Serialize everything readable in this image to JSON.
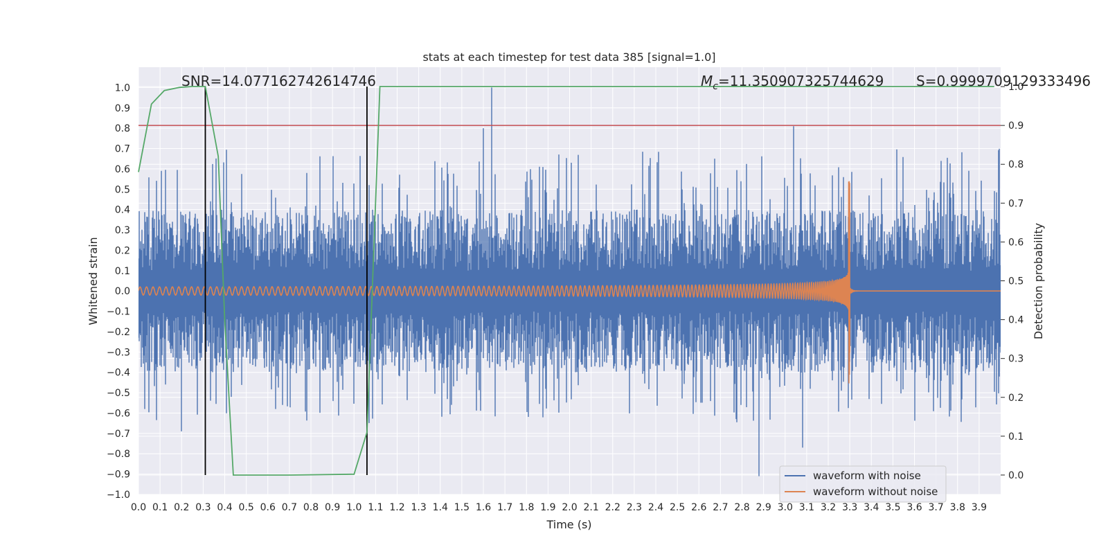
{
  "chart_data": {
    "type": "line",
    "title": "stats at each timestep for test data 385 [signal=1.0]",
    "xlabel": "Time (s)",
    "ylabel": "Whitened strain",
    "y2label": "Detection probability",
    "xlim": [
      0.0,
      4.0
    ],
    "ylim": [
      -1.0,
      1.1
    ],
    "y2lim": [
      -0.05,
      1.05
    ],
    "xticks": [
      "0.0",
      "0.1",
      "0.2",
      "0.3",
      "0.4",
      "0.5",
      "0.6",
      "0.7",
      "0.8",
      "0.9",
      "1.0",
      "1.1",
      "1.2",
      "1.3",
      "1.4",
      "1.5",
      "1.6",
      "1.7",
      "1.8",
      "1.9",
      "2.0",
      "2.1",
      "2.2",
      "2.3",
      "2.4",
      "2.5",
      "2.6",
      "2.7",
      "2.8",
      "2.9",
      "3.0",
      "3.1",
      "3.2",
      "3.3",
      "3.4",
      "3.5",
      "3.6",
      "3.7",
      "3.8",
      "3.9"
    ],
    "yticks": [
      "1.0",
      "0.9",
      "0.8",
      "0.7",
      "0.6",
      "0.5",
      "0.4",
      "0.3",
      "0.2",
      "0.1",
      "0.0",
      "−0.1",
      "−0.2",
      "−0.3",
      "−0.4",
      "−0.5",
      "−0.6",
      "−0.7",
      "−0.8",
      "−0.9",
      "−1.0"
    ],
    "y2ticks": [
      "1.0",
      "0.9",
      "0.8",
      "0.7",
      "0.6",
      "0.5",
      "0.4",
      "0.3",
      "0.2",
      "0.1",
      "0.0"
    ],
    "grid": true,
    "legend_position": "bottom-right",
    "annotations": {
      "snr": "SNR=14.077162742614746",
      "mc_symbol": "M",
      "mc_sub": "c",
      "mc_value": "=11.350907325744629",
      "s": "S=0.9999709129333496"
    },
    "series": [
      {
        "name": "waveform with noise",
        "color": "#4c72b0",
        "amplitude_range": [
          -0.91,
          1.0
        ],
        "sample_peaks": [
          [
            0.03,
            -0.58
          ],
          [
            0.2,
            -0.69
          ],
          [
            1.6,
            0.8
          ],
          [
            1.64,
            1.0
          ],
          [
            2.88,
            -0.91
          ],
          [
            3.04,
            0.81
          ],
          [
            3.08,
            -0.77
          ]
        ]
      },
      {
        "name": "waveform without noise",
        "color": "#dd8452",
        "merger_time": 3.3,
        "peak": 0.54,
        "trough": -0.47,
        "initial_amplitude": 0.02
      },
      {
        "name": "detection probability",
        "color": "#55a868",
        "axis": "right",
        "x": [
          0.0,
          0.06,
          0.12,
          0.19,
          0.25,
          0.31,
          0.37,
          0.4,
          0.44,
          0.5,
          0.7,
          1.0,
          1.06,
          1.12,
          1.2,
          3.97
        ],
        "y": [
          0.78,
          0.955,
          0.99,
          0.998,
          1.0,
          1.0,
          0.82,
          0.4,
          0.0,
          0.0,
          0.0,
          0.002,
          0.11,
          1.0,
          1.0,
          1.0
        ]
      },
      {
        "name": "threshold",
        "color": "#c44e52",
        "axis": "right",
        "value": 0.9
      }
    ],
    "vertical_lines": [
      {
        "x": 0.31,
        "color": "#000000"
      },
      {
        "x": 1.06,
        "color": "#000000"
      }
    ],
    "legend": [
      {
        "label": "waveform with noise",
        "color": "#4c72b0"
      },
      {
        "label": "waveform without noise",
        "color": "#dd8452"
      }
    ],
    "colors": {
      "plot_bg": "#eaeaf2",
      "grid": "#ffffff"
    }
  }
}
